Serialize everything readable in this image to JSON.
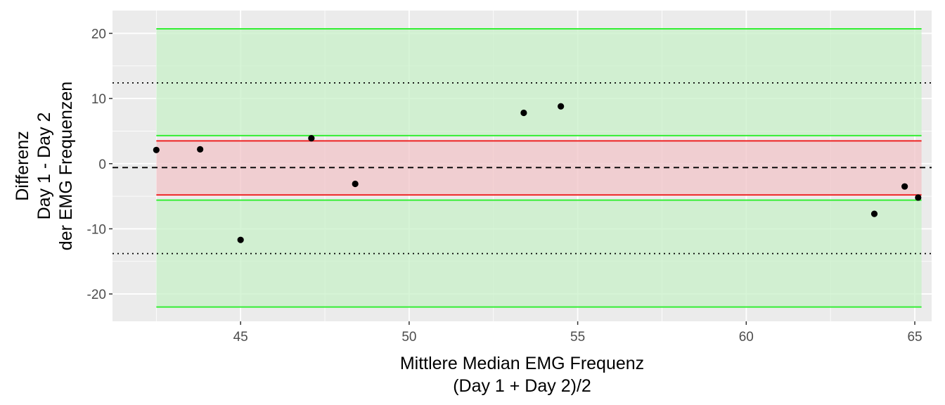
{
  "chart_data": {
    "type": "scatter",
    "title": "",
    "xlabel": [
      "Mittlere Median EMG Frequenz",
      "(Day 1 + Day 2)/2"
    ],
    "ylabel": [
      "Differenz",
      "Day 1 - Day 2",
      "der EMG Frequenzen"
    ],
    "xlim": [
      41.2,
      65.5
    ],
    "ylim": [
      -24.2,
      23.5
    ],
    "x_ticks": [
      45,
      50,
      55,
      60,
      65
    ],
    "x_tick_labels": [
      "45",
      "50",
      "55",
      "60",
      "65"
    ],
    "y_ticks": [
      -20,
      -10,
      0,
      10,
      20
    ],
    "y_tick_labels": [
      "-20",
      "-10",
      "0",
      "10",
      "20"
    ],
    "grid": true,
    "points": [
      {
        "x": 42.5,
        "y": 2.1
      },
      {
        "x": 43.8,
        "y": 2.2
      },
      {
        "x": 45.0,
        "y": -11.7
      },
      {
        "x": 47.1,
        "y": 3.9
      },
      {
        "x": 48.4,
        "y": -3.1
      },
      {
        "x": 53.4,
        "y": 7.8
      },
      {
        "x": 54.5,
        "y": 8.8
      },
      {
        "x": 63.8,
        "y": -7.7
      },
      {
        "x": 64.7,
        "y": -3.5
      },
      {
        "x": 65.1,
        "y": -5.2
      }
    ],
    "x_range_span": [
      42.5,
      65.2
    ],
    "mean_line": {
      "y": -0.6,
      "style": "dashed",
      "color": "#000000"
    },
    "limits_of_agreement": {
      "upper": 12.4,
      "lower": -13.8,
      "style": "dotted",
      "color": "#000000"
    },
    "confidence_bands": [
      {
        "name": "upper-loa-ci",
        "ymin": 4.3,
        "ymax": 20.7,
        "fill": "#c8f0c8",
        "stroke": "#33ee33"
      },
      {
        "name": "lower-loa-ci",
        "ymin": -22.0,
        "ymax": -5.6,
        "fill": "#c8f0c8",
        "stroke": "#33ee33"
      },
      {
        "name": "mean-ci",
        "ymin": -4.8,
        "ymax": 3.5,
        "fill": "#f2c4c8",
        "stroke": "#ee2222"
      }
    ],
    "colors": {
      "panel": "#ebebeb",
      "grid_major": "#ffffff",
      "point": "#000000",
      "tick_text": "#4d4d4d"
    }
  }
}
